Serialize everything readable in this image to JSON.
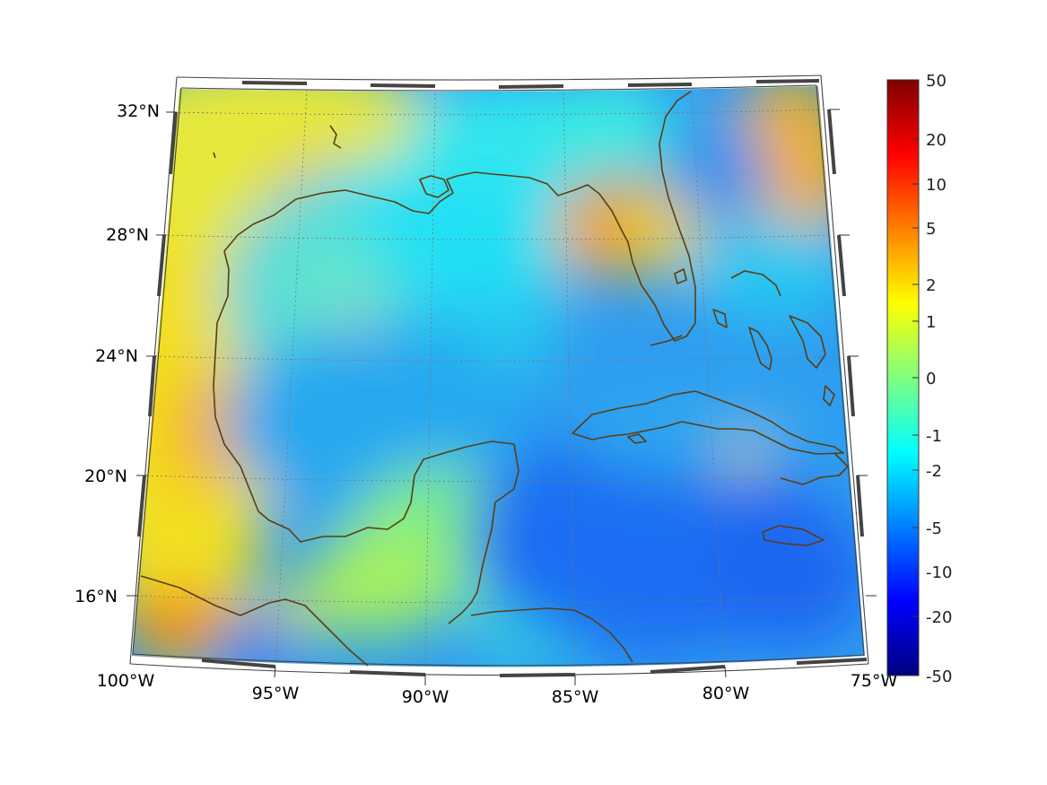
{
  "map": {
    "longitude_labels": [
      "100°W",
      "95°W",
      "90°W",
      "85°W",
      "80°W",
      "75°W"
    ],
    "latitude_labels": [
      "16°N",
      "20°N",
      "24°N",
      "28°N",
      "32°N"
    ],
    "colors": {
      "coastline": "#5a3e14",
      "grid": "#666666"
    },
    "field_pattern": {
      "warm_regions": [
        "west-coast-mexico",
        "north-gulf-coast",
        "florida-west",
        "atlantic-east",
        "central-america-southwest"
      ],
      "cool_regions": [
        "central-gulf",
        "caribbean-south",
        "yucatan-channel"
      ]
    }
  },
  "colorbar": {
    "tick_labels": [
      "50",
      "20",
      "10",
      "5",
      "2",
      "1",
      "0",
      "-1",
      "-2",
      "-5",
      "-10",
      "-20",
      "-50"
    ],
    "colormap": "jet"
  }
}
